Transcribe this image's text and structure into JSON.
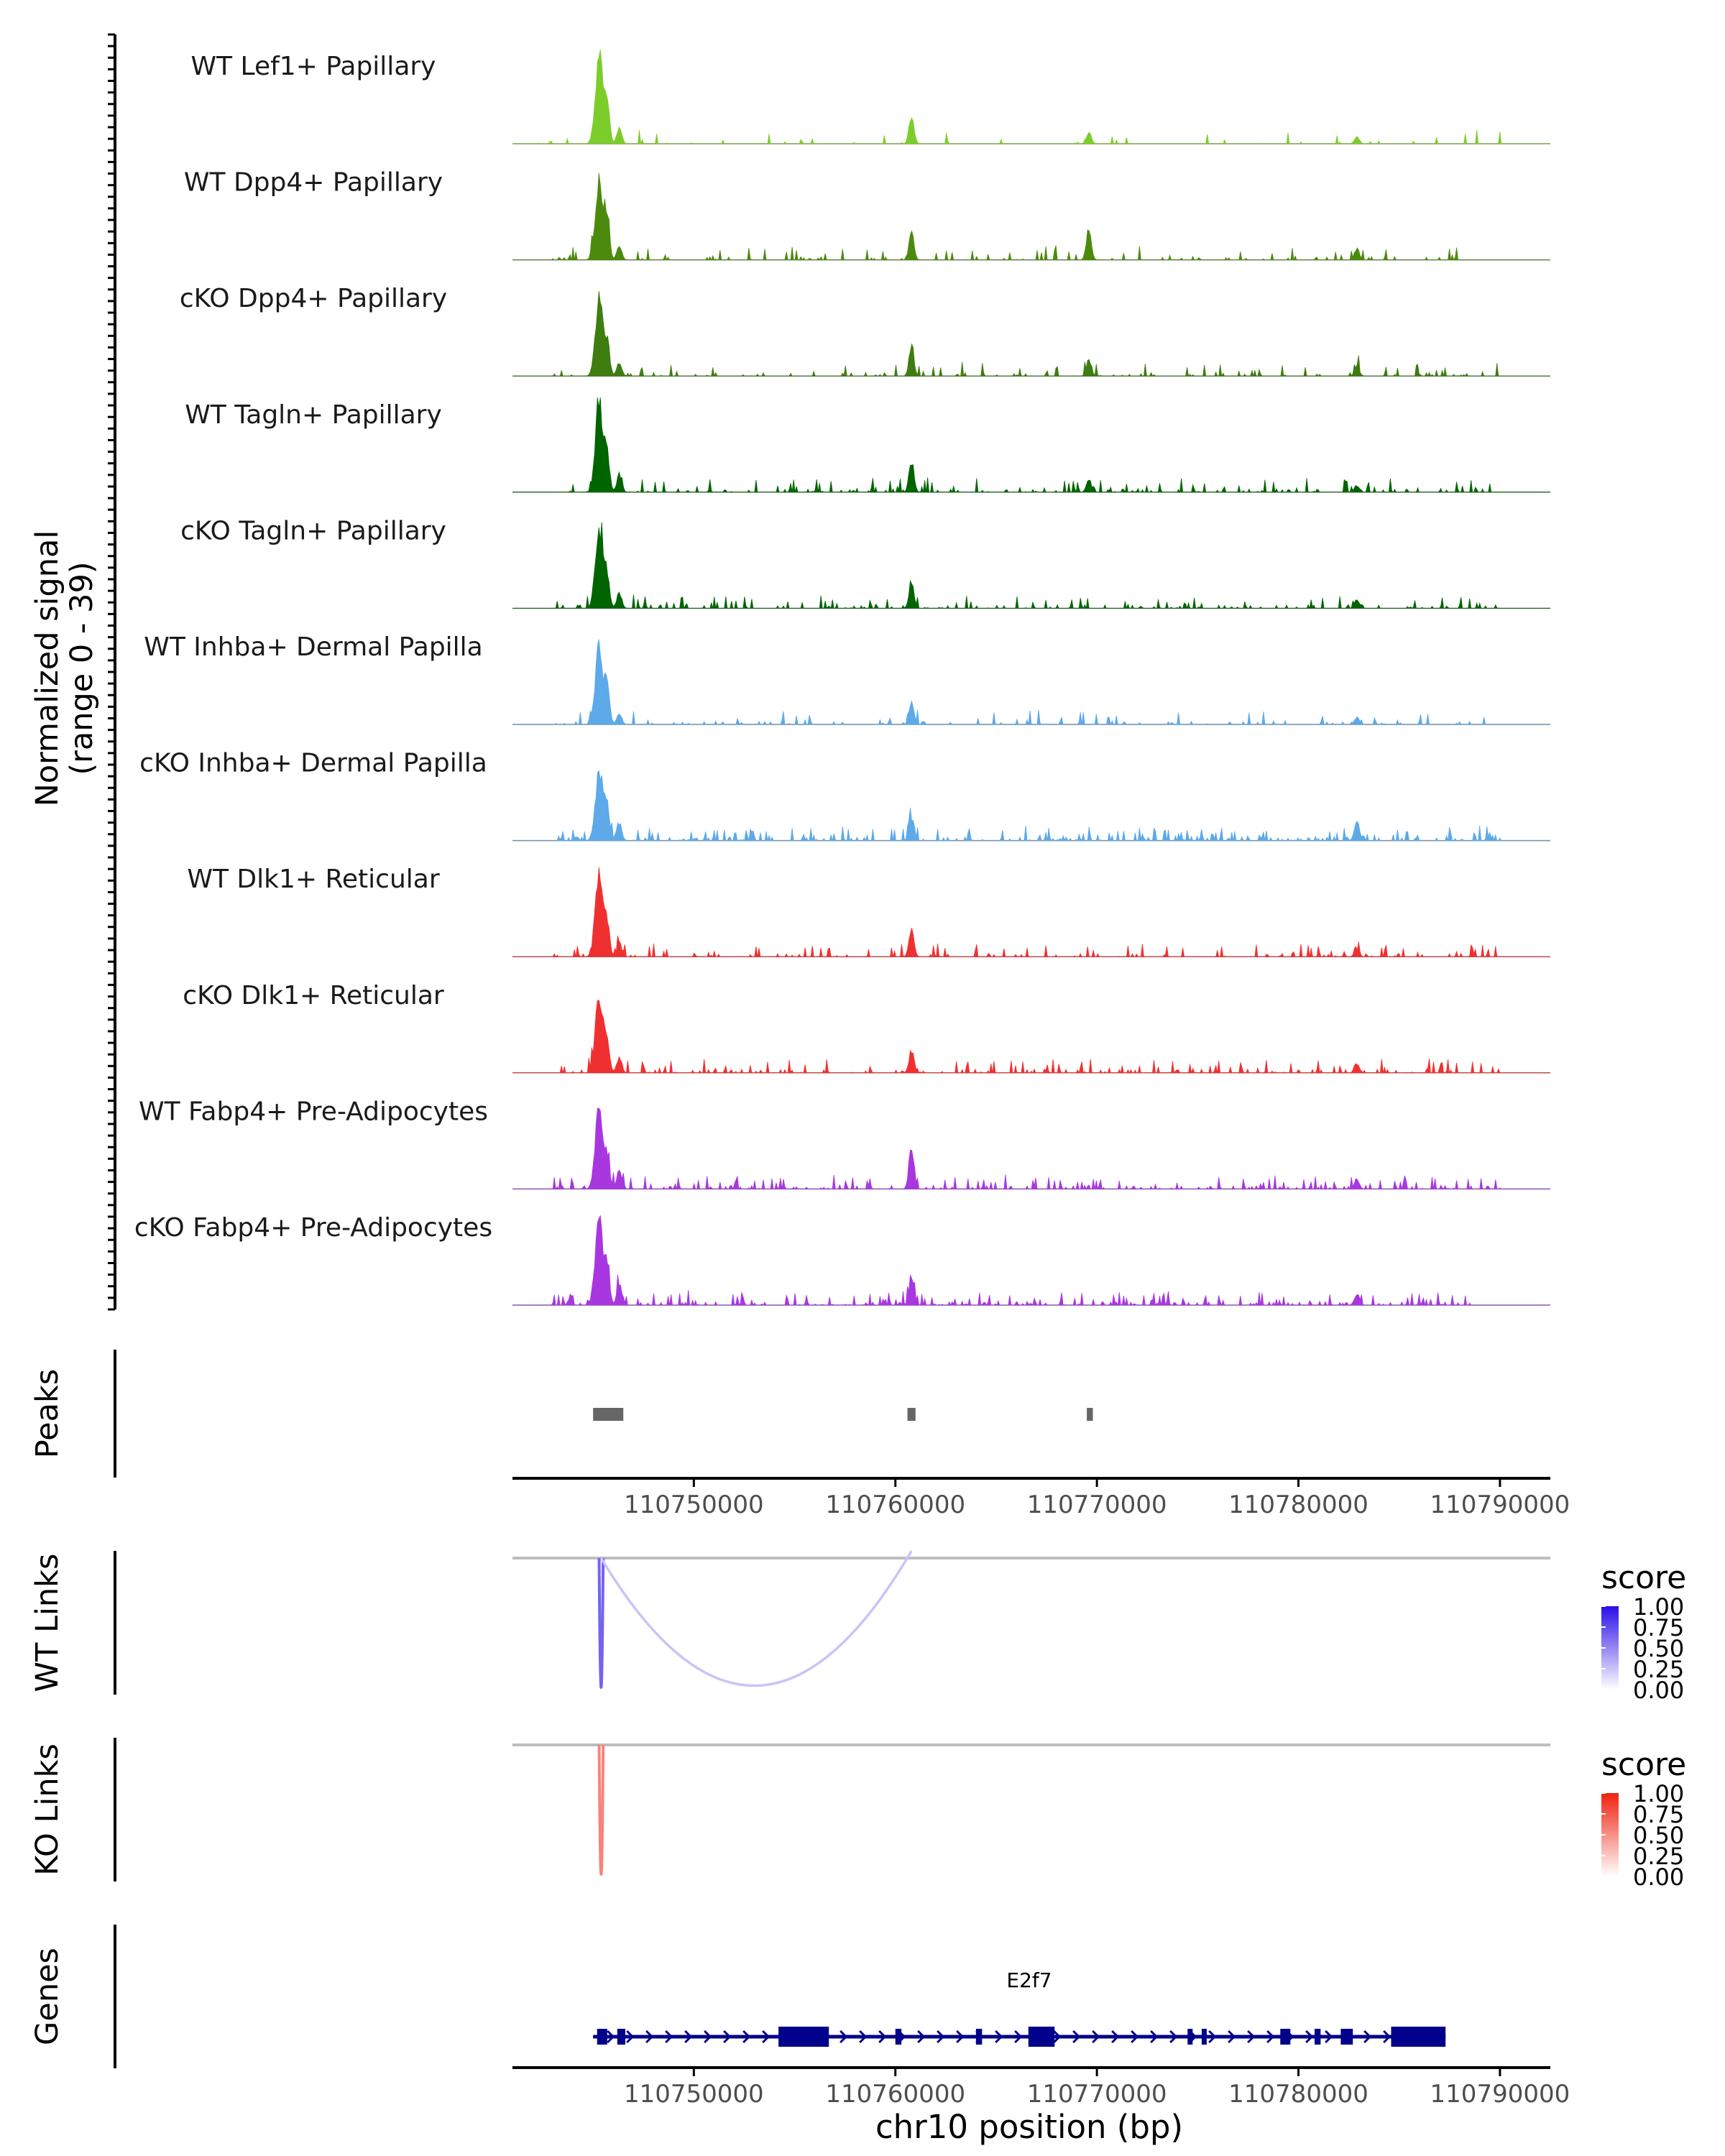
{
  "chart_data": {
    "type": "area",
    "title": "",
    "y_axis_label_line1": "Normalized signal",
    "y_axis_label_line2": "(range 0 - 39)",
    "ylim": [
      0,
      39
    ],
    "xlabel": "chr10 position (bp)",
    "xlim": [
      110741000,
      110792500
    ],
    "x_ticks": [
      "110750000",
      "110760000",
      "110770000",
      "110780000",
      "110790000"
    ],
    "x_tick_values": [
      110750000,
      110760000,
      110770000,
      110780000,
      110790000
    ],
    "tracks": [
      {
        "name": "WT Lef1+ Papillary",
        "color": "#7CCD2A",
        "peaks": [
          [
            110745300,
            39
          ],
          [
            110745700,
            18
          ],
          [
            110746300,
            7
          ],
          [
            110760800,
            12
          ],
          [
            110769600,
            5
          ],
          [
            110782900,
            3
          ]
        ],
        "noise": 0.03,
        "seed": 11,
        "noise_range": [
          110741000,
          110790000
        ]
      },
      {
        "name": "WT Dpp4+ Papillary",
        "color": "#4C8A0E",
        "peaks": [
          [
            110745300,
            36
          ],
          [
            110745700,
            16
          ],
          [
            110746300,
            6
          ],
          [
            110760800,
            12
          ],
          [
            110769600,
            14
          ],
          [
            110782900,
            5
          ]
        ],
        "noise": 0.07,
        "seed": 23,
        "noise_range": [
          110743000,
          110788500
        ]
      },
      {
        "name": "cKO Dpp4+ Papillary",
        "color": "#3E7D10",
        "peaks": [
          [
            110745300,
            34
          ],
          [
            110745700,
            15
          ],
          [
            110746300,
            6
          ],
          [
            110760800,
            13
          ],
          [
            110769600,
            7
          ],
          [
            110782900,
            4
          ]
        ],
        "noise": 0.07,
        "seed": 37,
        "noise_range": [
          110743000,
          110790000
        ]
      },
      {
        "name": "WT Tagln+ Papillary",
        "color": "#006400",
        "peaks": [
          [
            110745300,
            39
          ],
          [
            110745700,
            16
          ],
          [
            110746300,
            8
          ],
          [
            110760800,
            14
          ],
          [
            110769600,
            5
          ],
          [
            110782900,
            3
          ]
        ],
        "noise": 0.12,
        "seed": 41,
        "noise_range": [
          110743500,
          110789500
        ]
      },
      {
        "name": "cKO Tagln+ Papillary",
        "color": "#006400",
        "peaks": [
          [
            110745300,
            36
          ],
          [
            110745700,
            14
          ],
          [
            110746300,
            7
          ],
          [
            110760800,
            12
          ],
          [
            110782900,
            4
          ]
        ],
        "noise": 0.12,
        "seed": 53,
        "noise_range": [
          110743000,
          110790000
        ]
      },
      {
        "name": "WT Inhba+ Dermal Papilla",
        "color": "#5DA9E9",
        "peaks": [
          [
            110745300,
            34
          ],
          [
            110745700,
            16
          ],
          [
            110746300,
            5
          ],
          [
            110760800,
            10
          ],
          [
            110782900,
            3
          ]
        ],
        "noise": 0.08,
        "seed": 61,
        "noise_range": [
          110743000,
          110789500
        ]
      },
      {
        "name": "cKO Inhba+ Dermal Papilla",
        "color": "#5DA9E9",
        "peaks": [
          [
            110745300,
            30
          ],
          [
            110745700,
            14
          ],
          [
            110746300,
            8
          ],
          [
            110760800,
            10
          ],
          [
            110782900,
            9
          ]
        ],
        "noise": 0.18,
        "seed": 67,
        "noise_range": [
          110743000,
          110790000
        ]
      },
      {
        "name": "WT Dlk1+ Reticular",
        "color": "#F03030",
        "peaks": [
          [
            110745300,
            37
          ],
          [
            110745700,
            14
          ],
          [
            110746300,
            6
          ],
          [
            110760800,
            12
          ],
          [
            110782900,
            3
          ]
        ],
        "noise": 0.1,
        "seed": 71,
        "noise_range": [
          110743000,
          110790000
        ]
      },
      {
        "name": "cKO Dlk1+ Reticular",
        "color": "#F03030",
        "peaks": [
          [
            110745300,
            35
          ],
          [
            110745700,
            14
          ],
          [
            110746300,
            7
          ],
          [
            110760800,
            10
          ],
          [
            110782900,
            4
          ]
        ],
        "noise": 0.12,
        "seed": 79,
        "noise_range": [
          110743000,
          110790000
        ]
      },
      {
        "name": "WT Fabp4+ Pre-Adipocytes",
        "color": "#A837E0",
        "peaks": [
          [
            110745300,
            36
          ],
          [
            110745700,
            14
          ],
          [
            110746300,
            8
          ],
          [
            110760800,
            20
          ],
          [
            110782900,
            4
          ]
        ],
        "noise": 0.14,
        "seed": 83,
        "noise_range": [
          110743000,
          110790000
        ]
      },
      {
        "name": "cKO Fabp4+ Pre-Adipocytes",
        "color": "#A837E0",
        "peaks": [
          [
            110745300,
            37
          ],
          [
            110745700,
            16
          ],
          [
            110746300,
            9
          ],
          [
            110760800,
            13
          ],
          [
            110782900,
            5
          ]
        ],
        "noise": 0.16,
        "seed": 97,
        "noise_range": [
          110743000,
          110788500
        ]
      }
    ],
    "peaks_track": {
      "label": "Peaks",
      "color": "#666666",
      "regions": [
        [
          110745000,
          110746500
        ],
        [
          110760600,
          110761000
        ],
        [
          110769500,
          110769800
        ]
      ]
    },
    "links_tracks": [
      {
        "label": "WT Links",
        "legend_title": "score",
        "scale_low": "#ffffff",
        "scale_high": "#2A0FE8",
        "legend_ticks": [
          "1.00",
          "0.75",
          "0.50",
          "0.25",
          "0.00"
        ],
        "links": [
          {
            "start": 110745300,
            "end": 110745500,
            "score": 0.65
          },
          {
            "start": 110745400,
            "end": 110760800,
            "score": 0.25
          }
        ]
      },
      {
        "label": "KO Links",
        "legend_title": "score",
        "scale_low": "#ffffff",
        "scale_high": "#F0200F",
        "legend_ticks": [
          "1.00",
          "0.75",
          "0.50",
          "0.25",
          "0.00"
        ],
        "links": [
          {
            "start": 110745300,
            "end": 110745500,
            "score": 0.55
          }
        ]
      }
    ],
    "genes_track": {
      "label": "Genes",
      "gene_name": "E2f7",
      "color": "#00008B",
      "start": 110745000,
      "end": 110787300,
      "exons": [
        [
          110745200,
          110745700
        ],
        [
          110746200,
          110746600
        ],
        [
          110754200,
          110756700
        ],
        [
          110760000,
          110760300
        ],
        [
          110764000,
          110764300
        ],
        [
          110766600,
          110767900
        ],
        [
          110774500,
          110774700
        ],
        [
          110775200,
          110775400
        ],
        [
          110779100,
          110779600
        ],
        [
          110780800,
          110781100
        ],
        [
          110782100,
          110782700
        ],
        [
          110784600,
          110787300
        ]
      ]
    }
  }
}
